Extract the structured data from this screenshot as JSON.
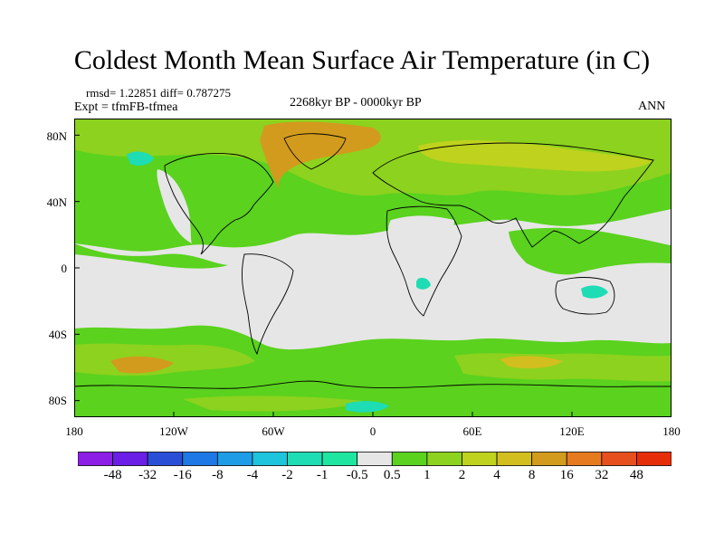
{
  "title": "Coldest Month Mean Surface Air Temperature (in C)",
  "stats": "rmsd= 1.22851 diff= 0.787275",
  "experiment": "Expt = tfmFB-tfmea",
  "period": "2268kyr BP - 0000kyr BP",
  "season": "ANN",
  "map": {
    "projection": "cylindrical-equidistant",
    "lon_range": [
      -180,
      180
    ],
    "lat_range": [
      -90,
      90
    ],
    "background_value_color": "#e6e6e6",
    "land_outline_color": "#000000"
  },
  "axes": {
    "y_ticks": [
      {
        "value": 80,
        "label": "80N"
      },
      {
        "value": 40,
        "label": "40N"
      },
      {
        "value": 0,
        "label": "0"
      },
      {
        "value": -40,
        "label": "40S"
      },
      {
        "value": -80,
        "label": "80S"
      }
    ],
    "x_ticks": [
      {
        "value": -180,
        "label": "180"
      },
      {
        "value": -120,
        "label": "120W"
      },
      {
        "value": -60,
        "label": "60W"
      },
      {
        "value": 0,
        "label": "0"
      },
      {
        "value": 60,
        "label": "60E"
      },
      {
        "value": 120,
        "label": "120E"
      },
      {
        "value": 180,
        "label": "180"
      }
    ]
  },
  "colorbar": {
    "colors": [
      "#8c1ee6",
      "#6a1ee6",
      "#2a4fd6",
      "#1e78e6",
      "#1e9ce6",
      "#1ec3dc",
      "#1edcb4",
      "#1ee6a0",
      "#e6e6e6",
      "#5ad21e",
      "#8cd21e",
      "#bed21e",
      "#d2be1e",
      "#d29b1e",
      "#e67a1e",
      "#e6501e",
      "#e62d0a"
    ],
    "labels": [
      "-48",
      "-32",
      "-16",
      "-8",
      "-4",
      "-2",
      "-1",
      "-0.5",
      "0.5",
      "1",
      "2",
      "4",
      "8",
      "16",
      "32",
      "48"
    ]
  }
}
